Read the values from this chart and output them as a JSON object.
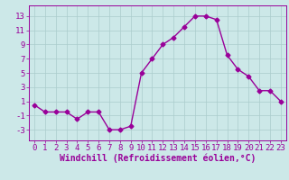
{
  "x": [
    0,
    1,
    2,
    3,
    4,
    5,
    6,
    7,
    8,
    9,
    10,
    11,
    12,
    13,
    14,
    15,
    16,
    17,
    18,
    19,
    20,
    21,
    22,
    23
  ],
  "y": [
    0.5,
    -0.5,
    -0.5,
    -0.5,
    -1.5,
    -0.5,
    -0.5,
    -3.0,
    -3.0,
    -2.5,
    5.0,
    7.0,
    9.0,
    10.0,
    11.5,
    13.0,
    13.0,
    12.5,
    7.5,
    5.5,
    4.5,
    2.5,
    2.5,
    1.0
  ],
  "line_color": "#990099",
  "marker": "D",
  "marker_size": 2.5,
  "bg_color": "#cce8e8",
  "grid_color": "#aacccc",
  "xlabel": "Windchill (Refroidissement éolien,°C)",
  "yticks": [
    -3,
    -1,
    1,
    3,
    5,
    7,
    9,
    11,
    13
  ],
  "xticks": [
    0,
    1,
    2,
    3,
    4,
    5,
    6,
    7,
    8,
    9,
    10,
    11,
    12,
    13,
    14,
    15,
    16,
    17,
    18,
    19,
    20,
    21,
    22,
    23
  ],
  "ylim": [
    -4.5,
    14.5
  ],
  "xlim": [
    -0.5,
    23.5
  ],
  "tick_color": "#990099",
  "axis_color": "#990099",
  "xlabel_fontsize": 7.0,
  "tick_fontsize": 6.5,
  "linewidth": 1.0
}
